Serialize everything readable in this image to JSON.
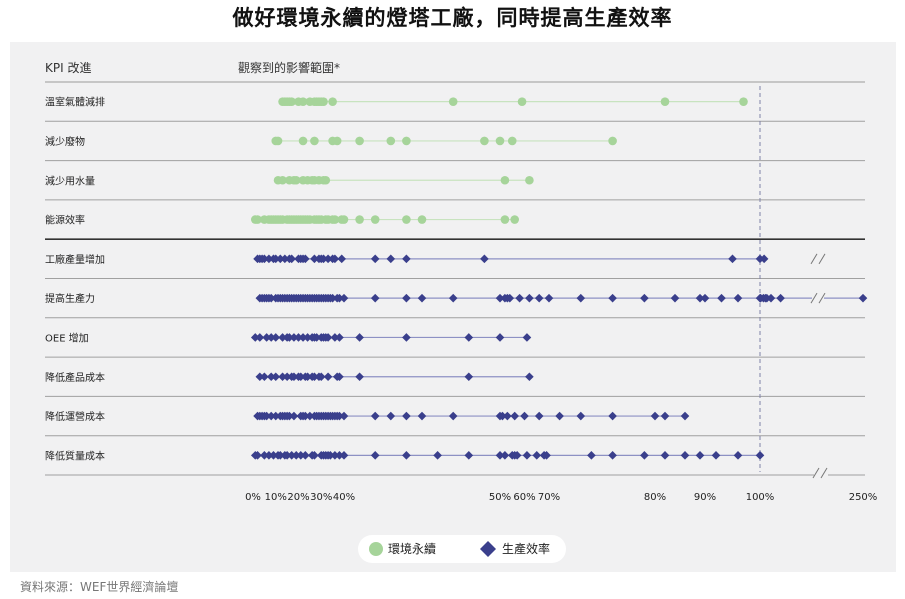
{
  "title": "做好環境永續的燈塔工廠，同時提高生產效率",
  "source": "資料來源：WEF世界經濟論壇",
  "colors": {
    "green": "#a6d49a",
    "green_line": "#c8e3bf",
    "navy": "#3a3f8c",
    "navy_line": "#8d91c4",
    "panel": "#f1f1f2"
  },
  "chart_data": {
    "type": "scatter",
    "col_kpi": "KPI 改進",
    "col_range": "觀察到的影響範圍*",
    "x_ticks": [
      {
        "label": "0%",
        "value": 0
      },
      {
        "label": "10%",
        "value": 10
      },
      {
        "label": "20%",
        "value": 20
      },
      {
        "label": "30%",
        "value": 30
      },
      {
        "label": "40%",
        "value": 40
      },
      {
        "label": "50%",
        "value": 50
      },
      {
        "label": "60%",
        "value": 60
      },
      {
        "label": "70%",
        "value": 70
      },
      {
        "label": "80%",
        "value": 80
      },
      {
        "label": "90%",
        "value": 90
      },
      {
        "label": "100%",
        "value": 100
      },
      {
        "label": "250%",
        "value": 250
      }
    ],
    "reference_line": 100,
    "axis_break": "between 100% and 250%",
    "legend": [
      {
        "label": "環境永續",
        "shape": "circle",
        "color": "#a6d49a"
      },
      {
        "label": "生產效率",
        "shape": "diamond",
        "color": "#3a3f8c"
      }
    ],
    "rows": [
      {
        "label": "溫室氣體減排",
        "group": "環境永續",
        "values": [
          13,
          14,
          15,
          16,
          17,
          20,
          22,
          25,
          27,
          28,
          29,
          30,
          31,
          35,
          47,
          59,
          82,
          97
        ]
      },
      {
        "label": "減少廢物",
        "group": "環境永續",
        "values": [
          10,
          11,
          22,
          27,
          35,
          37,
          41,
          43,
          44,
          49,
          50,
          55,
          76
        ]
      },
      {
        "label": "減少用水量",
        "group": "環境永續",
        "values": [
          11,
          13,
          16,
          18,
          19,
          22,
          24,
          26,
          27,
          29,
          31,
          32,
          52,
          62
        ]
      },
      {
        "label": "能源效率",
        "group": "環境永續",
        "values": [
          1,
          2,
          5,
          7,
          8,
          9,
          10,
          11,
          12,
          13,
          15,
          16,
          17,
          18,
          19,
          20,
          21,
          22,
          23,
          24,
          25,
          27,
          28,
          29,
          30,
          32,
          33,
          35,
          36,
          39,
          40,
          41,
          42,
          44,
          45,
          52,
          56
        ]
      },
      {
        "label": "工廠產量增加",
        "group": "生產效率",
        "values": [
          2,
          3,
          4,
          5,
          7,
          9,
          10,
          12,
          14,
          16,
          17,
          20,
          21,
          22,
          23,
          27,
          29,
          30,
          31,
          33,
          35,
          36,
          39,
          42,
          43,
          44,
          49,
          95,
          100,
          106
        ]
      },
      {
        "label": "提高生產力",
        "group": "生產效率",
        "values": [
          3,
          4,
          5,
          6,
          7,
          8,
          10,
          11,
          12,
          13,
          14,
          15,
          16,
          17,
          18,
          19,
          20,
          21,
          22,
          23,
          24,
          25,
          26,
          27,
          28,
          29,
          30,
          31,
          32,
          33,
          34,
          35,
          37,
          38,
          40,
          42,
          44,
          45,
          47,
          50,
          52,
          53,
          54,
          58,
          62,
          66,
          70,
          73,
          76,
          79,
          84,
          89,
          90,
          93,
          96,
          100,
          101,
          105,
          108,
          110,
          116,
          130,
          250
        ]
      },
      {
        "label": "OEE 增加",
        "group": "生產效率",
        "values": [
          1,
          3,
          6,
          8,
          10,
          13,
          15,
          16,
          18,
          20,
          22,
          24,
          26,
          27,
          28,
          30,
          31,
          32,
          33,
          36,
          38,
          41,
          44,
          48,
          50,
          61
        ]
      },
      {
        "label": "降低產品成本",
        "group": "生產效率",
        "values": [
          3,
          5,
          8,
          10,
          13,
          15,
          17,
          18,
          20,
          21,
          23,
          24,
          26,
          27,
          29,
          30,
          33,
          37,
          38,
          41,
          48,
          62
        ]
      },
      {
        "label": "降低運營成本",
        "group": "生產效率",
        "values": [
          2,
          3,
          4,
          5,
          6,
          8,
          10,
          12,
          13,
          14,
          15,
          16,
          18,
          21,
          22,
          23,
          25,
          27,
          28,
          29,
          30,
          31,
          32,
          33,
          34,
          35,
          36,
          37,
          38,
          40,
          42,
          43,
          44,
          45,
          47,
          50,
          51,
          53,
          56,
          60,
          66,
          71,
          73,
          76,
          80,
          82,
          86
        ]
      },
      {
        "label": "降低質量成本",
        "group": "生產效率",
        "values": [
          1,
          2,
          5,
          7,
          9,
          11,
          12,
          14,
          15,
          17,
          19,
          21,
          23,
          26,
          27,
          30,
          31,
          32,
          33,
          34,
          36,
          38,
          40,
          42,
          44,
          46,
          48,
          50,
          52,
          55,
          56,
          57,
          61,
          65,
          68,
          69,
          74,
          76,
          79,
          82,
          86,
          89,
          92,
          96,
          100
        ]
      }
    ]
  }
}
